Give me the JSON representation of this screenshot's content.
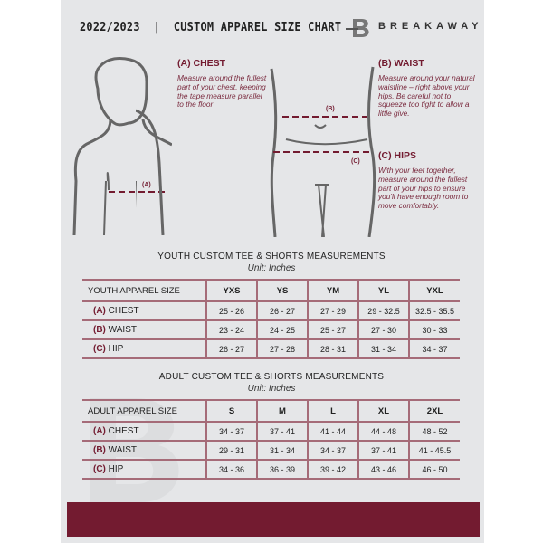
{
  "header": {
    "title": "2022/2023  |  CUSTOM APPAREL SIZE CHART",
    "brand": "BREAKAWAY"
  },
  "measure": {
    "chest": {
      "heading": "(A) CHEST",
      "text": "Measure around the fullest part of your chest, keeping the tape measure parallel to the floor",
      "marker": "(A)"
    },
    "waist": {
      "heading": "(B) WAIST",
      "text": "Measure around your natural waistline – right above your hips. Be careful not to squeeze too tight to allow a little give.",
      "marker": "(B)"
    },
    "hips": {
      "heading": "(C) HIPS",
      "text": "With your feet together, measure around the fullest part of your hips to ensure you'll have enough room to move comfortably.",
      "marker": "(C)"
    }
  },
  "colors": {
    "accent": "#731b30",
    "panel": "#e5e6e8"
  },
  "youth": {
    "title": "YOUTH CUSTOM TEE & SHORTS MEASUREMENTS",
    "unit": "Unit: Inches",
    "header": "YOUTH APPAREL SIZE",
    "sizes": [
      "YXS",
      "YS",
      "YM",
      "YL",
      "YXL"
    ],
    "rows": [
      {
        "code": "(A)",
        "label": "CHEST",
        "values": [
          "25 - 26",
          "26 - 27",
          "27 - 29",
          "29 - 32.5",
          "32.5 - 35.5"
        ]
      },
      {
        "code": "(B)",
        "label": "WAIST",
        "values": [
          "23 - 24",
          "24 - 25",
          "25 - 27",
          "27 - 30",
          "30 - 33"
        ]
      },
      {
        "code": "(C)",
        "label": "HIP",
        "values": [
          "26 - 27",
          "27 - 28",
          "28 - 31",
          "31 - 34",
          "34 - 37"
        ]
      }
    ]
  },
  "adult": {
    "title": "ADULT CUSTOM TEE & SHORTS MEASUREMENTS",
    "unit": "Unit: Inches",
    "header": "ADULT APPAREL SIZE",
    "sizes": [
      "S",
      "M",
      "L",
      "XL",
      "2XL"
    ],
    "rows": [
      {
        "code": "(A)",
        "label": "CHEST",
        "values": [
          "34 - 37",
          "37 - 41",
          "41 - 44",
          "44 - 48",
          "48 - 52"
        ]
      },
      {
        "code": "(B)",
        "label": "WAIST",
        "values": [
          "29 - 31",
          "31 - 34",
          "34 - 37",
          "37 - 41",
          "41 - 45.5"
        ]
      },
      {
        "code": "(C)",
        "label": "HIP",
        "values": [
          "34 - 36",
          "36 - 39",
          "39 - 42",
          "43 - 46",
          "46 - 50"
        ]
      }
    ]
  }
}
